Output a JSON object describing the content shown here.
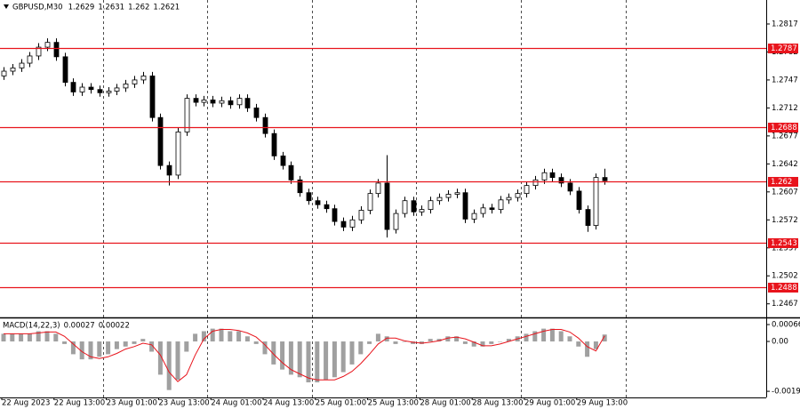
{
  "chart_data": [
    {
      "type": "candlestick",
      "title": "GBPUSD,M30",
      "quote": [
        1.2629,
        1.2631,
        1.262,
        1.2621
      ],
      "categories": [
        "22 Aug 2023",
        null,
        null,
        null,
        null,
        null,
        "22 Aug 13:00",
        null,
        null,
        null,
        null,
        null,
        "23 Aug 01:00",
        null,
        null,
        null,
        null,
        null,
        "23 Aug 13:00",
        null,
        null,
        null,
        null,
        null,
        "24 Aug 01:00",
        null,
        null,
        null,
        null,
        null,
        "24 Aug 13:00",
        null,
        null,
        null,
        null,
        null,
        "25 Aug 01:00",
        null,
        null,
        null,
        null,
        null,
        "25 Aug 13:00",
        null,
        null,
        null,
        null,
        null,
        "28 Aug 01:00",
        null,
        null,
        null,
        null,
        null,
        "28 Aug 13:00",
        null,
        null,
        null,
        null,
        null,
        "29 Aug 01:00",
        null,
        null,
        null,
        null,
        null,
        "29 Aug 13:00",
        null,
        null,
        null
      ],
      "open": [
        1.2752,
        1.2758,
        1.2762,
        1.2768,
        1.2777,
        1.2788,
        1.2794,
        1.2776,
        1.2744,
        1.2732,
        1.2738,
        1.2735,
        1.2731,
        1.2733,
        1.2737,
        1.2742,
        1.2747,
        1.2752,
        1.27,
        1.264,
        1.2628,
        1.2682,
        1.2724,
        1.2719,
        1.2722,
        1.2718,
        1.2721,
        1.2716,
        1.2724,
        1.2712,
        1.27,
        1.268,
        1.2652,
        1.264,
        1.2622,
        1.2606,
        1.2596,
        1.2591,
        1.2586,
        1.257,
        1.2563,
        1.2572,
        1.2584,
        1.2605,
        1.2618,
        1.256,
        1.258,
        1.2596,
        1.2582,
        1.2585,
        1.2596,
        1.26,
        1.2604,
        1.2606,
        1.2573,
        1.258,
        1.2587,
        1.2585,
        1.2597,
        1.26,
        1.2605,
        1.2615,
        1.2622,
        1.2631,
        1.2625,
        1.2618,
        1.2608,
        1.2585,
        1.2565,
        1.2625
      ],
      "high": [
        1.2763,
        1.2767,
        1.2773,
        1.2782,
        1.2793,
        1.2799,
        1.2799,
        1.2781,
        1.2749,
        1.2743,
        1.2743,
        1.274,
        1.2738,
        1.2742,
        1.2747,
        1.2752,
        1.2757,
        1.2757,
        1.2705,
        1.2645,
        1.2687,
        1.2729,
        1.2729,
        1.2727,
        1.2727,
        1.2726,
        1.2726,
        1.2729,
        1.2729,
        1.2717,
        1.2705,
        1.2685,
        1.2657,
        1.2645,
        1.2627,
        1.2611,
        1.2601,
        1.2596,
        1.2591,
        1.2575,
        1.2577,
        1.2589,
        1.261,
        1.2623,
        1.2653,
        1.2585,
        1.2601,
        1.2601,
        1.259,
        1.2601,
        1.2605,
        1.2609,
        1.2611,
        1.2611,
        1.2585,
        1.2592,
        1.2592,
        1.2602,
        1.2605,
        1.261,
        1.262,
        1.2627,
        1.2636,
        1.2636,
        1.263,
        1.2623,
        1.2613,
        1.259,
        1.263,
        1.2636
      ],
      "low": [
        1.2747,
        1.2753,
        1.2757,
        1.2763,
        1.2772,
        1.2783,
        1.2771,
        1.2739,
        1.2727,
        1.2727,
        1.273,
        1.2726,
        1.2726,
        1.2728,
        1.2732,
        1.2737,
        1.2742,
        1.2695,
        1.2635,
        1.2615,
        1.2623,
        1.2677,
        1.2714,
        1.2714,
        1.2713,
        1.2713,
        1.2711,
        1.2711,
        1.2707,
        1.2695,
        1.2675,
        1.2647,
        1.2635,
        1.2617,
        1.2601,
        1.2591,
        1.2586,
        1.2581,
        1.2565,
        1.2558,
        1.2558,
        1.2567,
        1.2579,
        1.26,
        1.255,
        1.2555,
        1.2575,
        1.2577,
        1.2577,
        1.258,
        1.2591,
        1.2595,
        1.2599,
        1.2568,
        1.2568,
        1.2575,
        1.258,
        1.258,
        1.2592,
        1.2595,
        1.26,
        1.261,
        1.2617,
        1.262,
        1.2613,
        1.2603,
        1.258,
        1.2557,
        1.256,
        1.2616
      ],
      "close": [
        1.2758,
        1.2762,
        1.2768,
        1.2777,
        1.2788,
        1.2794,
        1.2776,
        1.2744,
        1.2732,
        1.2738,
        1.2735,
        1.2731,
        1.2733,
        1.2737,
        1.2742,
        1.2747,
        1.2752,
        1.27,
        1.264,
        1.2628,
        1.2682,
        1.2724,
        1.2719,
        1.2722,
        1.2718,
        1.2721,
        1.2716,
        1.2724,
        1.2712,
        1.27,
        1.268,
        1.2652,
        1.264,
        1.2622,
        1.2606,
        1.2596,
        1.2591,
        1.2586,
        1.257,
        1.2563,
        1.2572,
        1.2584,
        1.2605,
        1.2618,
        1.256,
        1.258,
        1.2596,
        1.2582,
        1.2585,
        1.2596,
        1.26,
        1.2604,
        1.2606,
        1.2573,
        1.258,
        1.2587,
        1.2585,
        1.2597,
        1.26,
        1.2605,
        1.2615,
        1.2622,
        1.2631,
        1.2625,
        1.2618,
        1.2608,
        1.2585,
        1.2565,
        1.2625,
        1.2621
      ],
      "color": "#000000",
      "levels": [
        1.2787,
        1.2688,
        1.262,
        1.2543,
        1.2488
      ],
      "level_color": "#e8141c",
      "ylim": [
        1.245,
        1.2847
      ],
      "yticks": [
        1.2817,
        1.2782,
        1.2747,
        1.2712,
        1.2677,
        1.2642,
        1.2607,
        1.2572,
        1.2537,
        1.2502,
        1.2467
      ]
    },
    {
      "type": "macd",
      "title": "MACD(14,22,3)",
      "series": [
        {
          "name": "MACD",
          "color": "#a0a0a0",
          "values": [
            0.0003,
            0.0003,
            0.0003,
            0.0003,
            0.0004,
            0.0004,
            0.0003,
            -0.0001,
            -0.0005,
            -0.0007,
            -0.0007,
            -0.0006,
            -0.0005,
            -0.0003,
            -0.0002,
            -0.0001,
            0.0001,
            -0.0004,
            -0.0013,
            -0.0019,
            -0.0015,
            -0.0004,
            0.0003,
            0.0004,
            0.0005,
            0.0005,
            0.0004,
            0.0004,
            0.0002,
            -0.0001,
            -0.0005,
            -0.0009,
            -0.0011,
            -0.0013,
            -0.0014,
            -0.0016,
            -0.0016,
            -0.0015,
            -0.0014,
            -0.0012,
            -0.0009,
            -0.0005,
            -0.0001,
            0.0003,
            0.0002,
            -0.0001,
            0,
            -0.0001,
            -0.0001,
            0.0001,
            0.0001,
            0.0002,
            0.0002,
            -0.0001,
            -0.0002,
            -0.0002,
            -0.0001,
            0,
            0.0001,
            0.0002,
            0.0003,
            0.0004,
            0.0005,
            0.0005,
            0.0004,
            0.0002,
            -0.0002,
            -0.0006,
            -0.0003,
            0.00027
          ]
        },
        {
          "name": "Signal",
          "color": "#e8141c",
          "values": [
            0.0003,
            0.0003,
            0.0003,
            0.0003,
            0.00033,
            0.00037,
            0.00037,
            0.0002,
            -0.0001,
            -0.0004,
            -0.0006,
            -0.00067,
            -0.0006,
            -0.00047,
            -0.0003,
            -0.0002,
            -7e-05,
            -0.00013,
            -0.00053,
            -0.0012,
            -0.00157,
            -0.0013,
            -0.00053,
            0.0001,
            0.0004,
            0.00047,
            0.00047,
            0.00043,
            0.00033,
            0.00017,
            -0.00013,
            -0.0005,
            -0.00083,
            -0.0011,
            -0.00127,
            -0.00143,
            -0.0015,
            -0.0015,
            -0.0015,
            -0.00137,
            -0.00117,
            -0.00087,
            -0.0005,
            -0.0001,
            0.00013,
            0.00013,
            3e-05,
            -3e-05,
            -7e-05,
            -3e-05,
            3e-05,
            0.00013,
            0.00017,
            0.0001,
            -3e-05,
            -0.00017,
            -0.00017,
            -0.0001,
            0,
            0.0001,
            0.0002,
            0.0003,
            0.0004,
            0.00047,
            0.00047,
            0.00037,
            0.00013,
            -0.0002,
            -0.00037,
            0.00022
          ]
        }
      ],
      "ylim": [
        -0.00219,
        0.00087
      ],
      "yticks": [
        0.00066,
        {
          "value": 0,
          "label": "0.00"
        },
        -0.00195
      ]
    }
  ]
}
